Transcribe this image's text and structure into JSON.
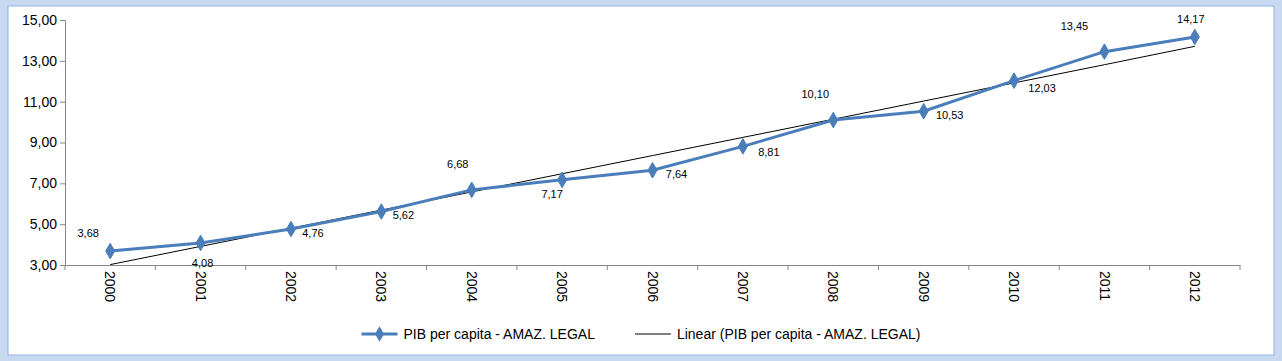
{
  "chart_data": {
    "type": "line",
    "categories": [
      "2000",
      "2001",
      "2002",
      "2003",
      "2004",
      "2005",
      "2006",
      "2007",
      "2008",
      "2009",
      "2010",
      "2011",
      "2012"
    ],
    "series": [
      {
        "name": "PIB per capita - AMAZ. LEGAL",
        "color": "#4a7ebb",
        "marker": "diamond",
        "line_style": "solid",
        "data_labels": true,
        "values": [
          3.68,
          4.08,
          4.76,
          5.62,
          6.68,
          7.17,
          7.64,
          8.81,
          10.1,
          10.53,
          12.03,
          13.45,
          14.17
        ],
        "value_labels": [
          "3,68",
          "4,08",
          "4,76",
          "5,62",
          "6,68",
          "7,17",
          "7,64",
          "8,81",
          "10,10",
          "10,53",
          "12,03",
          "13,45",
          "14,17"
        ]
      },
      {
        "name": "Linear (PIB per capita - AMAZ. LEGAL)",
        "color": "#000000",
        "marker": "none",
        "line_style": "solid",
        "values": [
          3.02,
          3.91,
          4.8,
          5.69,
          6.58,
          7.47,
          8.36,
          9.25,
          10.14,
          11.03,
          11.92,
          12.81,
          13.71
        ]
      }
    ],
    "ylim": [
      3,
      15
    ],
    "yticks": [
      {
        "value": 3,
        "label": "3,00"
      },
      {
        "value": 5,
        "label": "5,00"
      },
      {
        "value": 7,
        "label": "7,00"
      },
      {
        "value": 9,
        "label": "9,00"
      },
      {
        "value": 11,
        "label": "11,00"
      },
      {
        "value": 13,
        "label": "13,00"
      },
      {
        "value": 15,
        "label": "15,00"
      }
    ],
    "grid": false,
    "legend": "bottom"
  }
}
